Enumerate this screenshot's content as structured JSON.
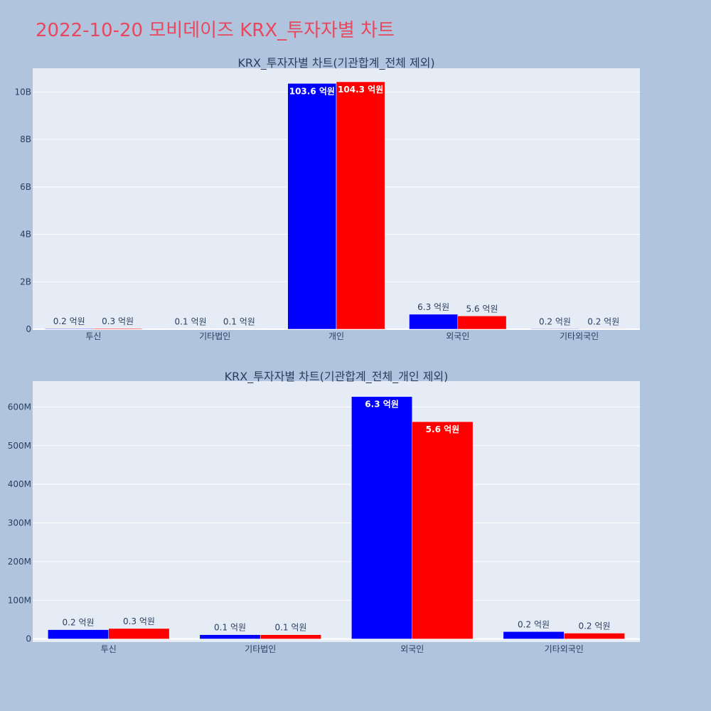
{
  "page": {
    "title": "2022-10-20 모비데이즈 KRX_투자자별 차트"
  },
  "chart_data": [
    {
      "type": "bar",
      "title": "KRX_투자자별 차트(기관합계_전체 제외)",
      "categories": [
        "투신",
        "기타법인",
        "개인",
        "외국인",
        "기타외국인"
      ],
      "series": [
        {
          "color": "#0000ff",
          "values": [
            25000000,
            10000000,
            10360000000,
            630000000,
            20000000
          ],
          "labels": [
            "0.2 억원",
            "0.1 억원",
            "103.6 억원",
            "6.3 억원",
            "0.2 억원"
          ]
        },
        {
          "color": "#ff0000",
          "values": [
            30000000,
            10000000,
            10430000000,
            560000000,
            16000000
          ],
          "labels": [
            "0.3 억원",
            "0.1 억원",
            "104.3 억원",
            "5.6 억원",
            "0.2 억원"
          ]
        }
      ],
      "ylim": [
        0,
        11000000000
      ],
      "yticks": [
        0,
        2000000000,
        4000000000,
        6000000000,
        8000000000,
        10000000000
      ],
      "ytick_labels": [
        "0",
        "2B",
        "4B",
        "6B",
        "8B",
        "10B"
      ],
      "grid": true,
      "legend": "none"
    },
    {
      "type": "bar",
      "title": "KRX_투자자별 차트(기관합계_전체_개인 제외)",
      "categories": [
        "투신",
        "기타법인",
        "외국인",
        "기타외국인"
      ],
      "series": [
        {
          "color": "#0000ff",
          "values": [
            24000000,
            11000000,
            627000000,
            19000000
          ],
          "labels": [
            "0.2 억원",
            "0.1 억원",
            "6.3 억원",
            "0.2 억원"
          ]
        },
        {
          "color": "#ff0000",
          "values": [
            27000000,
            11000000,
            562000000,
            15000000
          ],
          "labels": [
            "0.3 억원",
            "0.1 억원",
            "5.6 억원",
            "0.2 억원"
          ]
        }
      ],
      "ylim": [
        -8000000,
        667000000
      ],
      "yticks": [
        0,
        100000000,
        200000000,
        300000000,
        400000000,
        500000000,
        600000000
      ],
      "ytick_labels": [
        "0",
        "100M",
        "200M",
        "300M",
        "400M",
        "500M",
        "600M"
      ],
      "grid": true,
      "legend": "none"
    }
  ]
}
